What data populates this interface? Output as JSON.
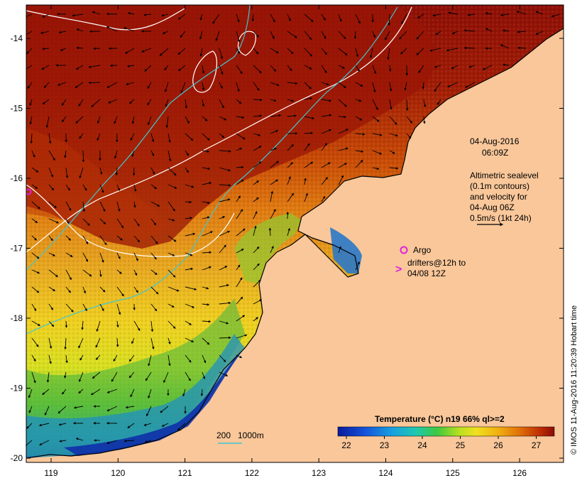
{
  "map": {
    "date_label": "04-Aug-2016",
    "time_label": "06:09Z",
    "legend_text": {
      "line1": "Altimetric sealevel",
      "line2": "(0.1m contours)",
      "line3": "and velocity for",
      "line4": "04-Aug 06Z",
      "line5": "0.5m/s (1kt 24h)"
    },
    "argo_label": "Argo",
    "drifters_line1": "drifters@12h to",
    "drifters_line2": "04/08 12Z",
    "drifter_symbol": ">",
    "depth_label_a": "200",
    "depth_label_b": "1000m",
    "credit": "© IMOS 11-Aug-2016 11:20:39 Hobart time",
    "x_ticks": [
      "119",
      "120",
      "121",
      "122",
      "123",
      "124",
      "125",
      "126"
    ],
    "y_ticks": [
      "-14",
      "-15",
      "-16",
      "-17",
      "-18",
      "-19",
      "-20"
    ],
    "colorbar": {
      "title": "Temperature (°C) n19 66% ql>=2",
      "tick_labels": [
        "22",
        "23",
        "24",
        "25",
        "26",
        "27"
      ]
    },
    "colors": {
      "land": "#f9c79a",
      "argo": "#e020e0",
      "contour_white": "#ffffff",
      "contour_cyan": "#40c8d0",
      "frame": "#000000"
    }
  }
}
